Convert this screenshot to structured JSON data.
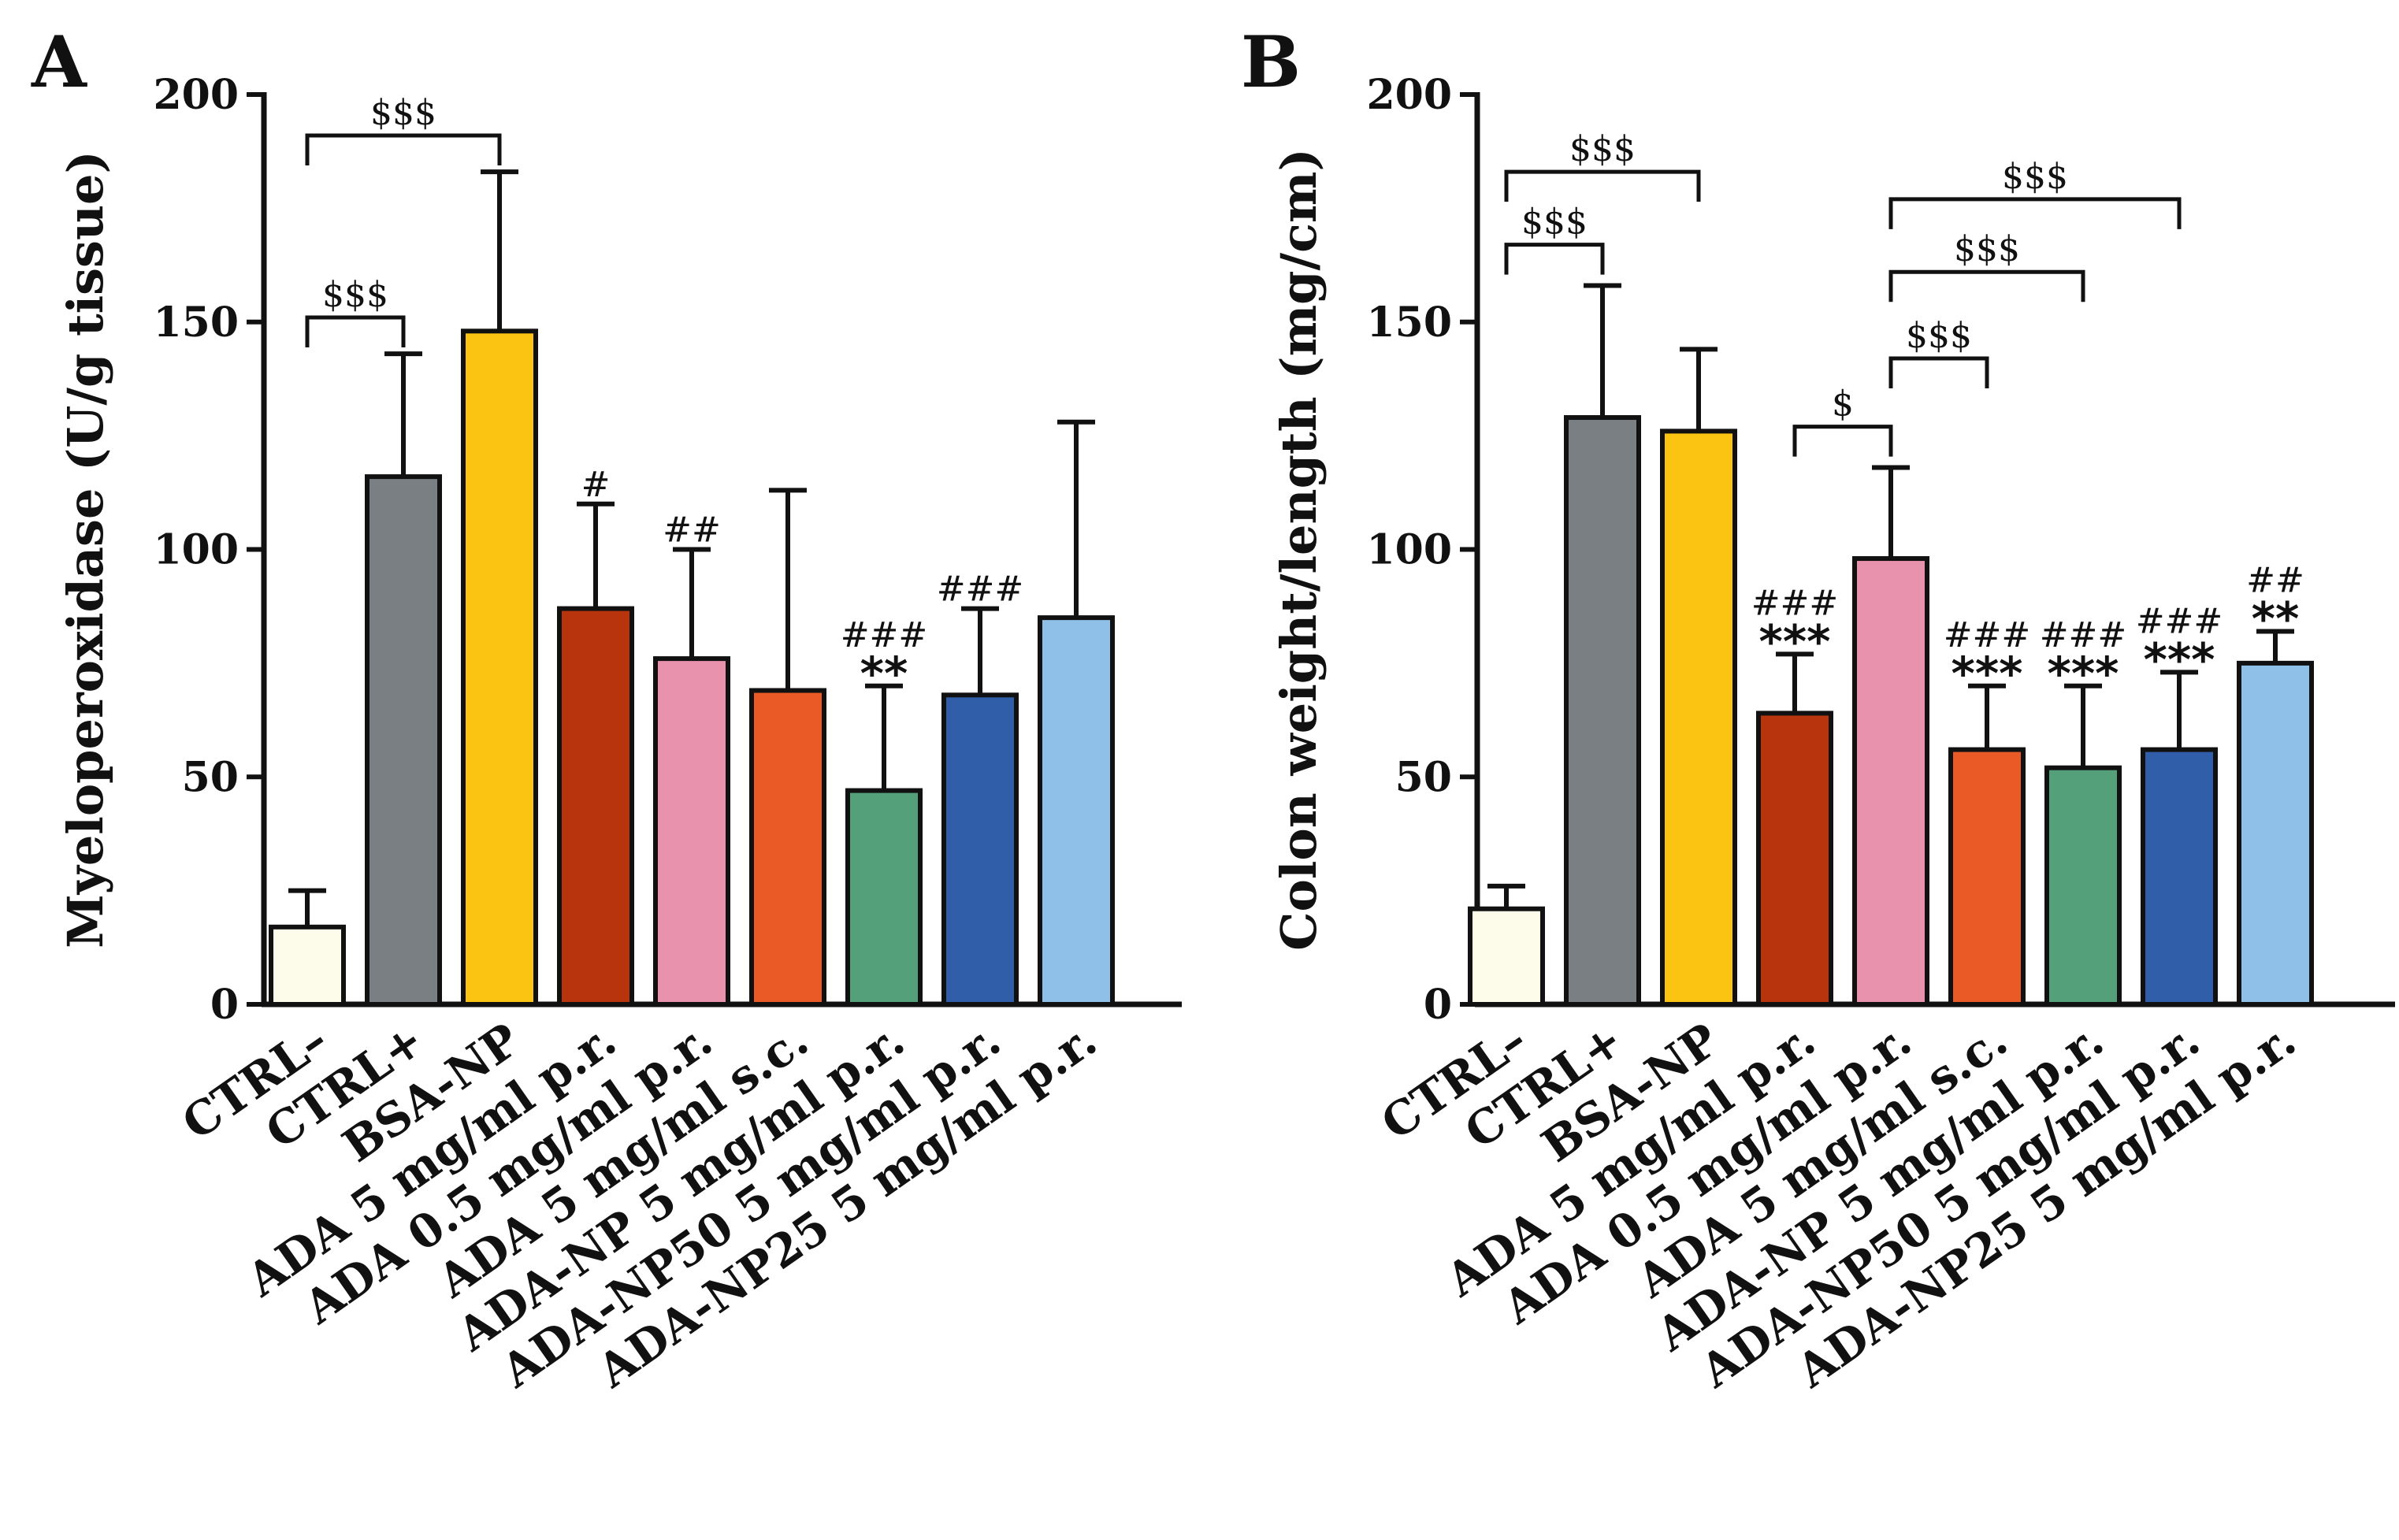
{
  "chart_data": [
    {
      "type": "bar",
      "panel": "A",
      "title": "",
      "xlabel": "",
      "ylabel": "Myeloperoxidase (U/g tissue)",
      "ylim": [
        0,
        200
      ],
      "yticks": [
        0,
        50,
        100,
        150,
        200
      ],
      "categories": [
        "CTRL–",
        "CTRL+",
        "BSA-NP",
        "ADA 5 mg/ml p.r.",
        "ADA 0.5 mg/ml p.r.",
        "ADA 5 mg/ml s.c.",
        "ADA-NP 5 mg/ml p.r.",
        "ADA-NP50 5 mg/ml p.r.",
        "ADA-NP25 5 mg/ml p.r."
      ],
      "values": [
        17,
        116,
        148,
        87,
        76,
        69,
        47,
        68,
        85
      ],
      "errors": [
        8,
        27,
        35,
        23,
        24,
        44,
        23,
        19,
        43
      ],
      "colors": [
        "#fdfbea",
        "#7a7f84",
        "#fcc412",
        "#b8340c",
        "#e892ad",
        "#e95a27",
        "#54a07b",
        "#315ea9",
        "#8ec0e8"
      ],
      "significance": [
        "",
        "",
        "",
        "#",
        "##",
        "",
        "###\n**",
        "###",
        ""
      ],
      "brackets": [
        {
          "from": 0,
          "to": 1,
          "label": "$$$",
          "y": 151
        },
        {
          "from": 0,
          "to": 2,
          "label": "$$$",
          "y": 191
        }
      ]
    },
    {
      "type": "bar",
      "panel": "B",
      "title": "",
      "xlabel": "",
      "ylabel": "Colon weight/length (mg/cm)",
      "ylim": [
        0,
        200
      ],
      "yticks": [
        0,
        50,
        100,
        150,
        200
      ],
      "categories": [
        "CTRL–",
        "CTRL+",
        "BSA-NP",
        "ADA 5 mg/ml p.r.",
        "ADA 0.5 mg/ml p.r.",
        "ADA 5 mg/ml s.c.",
        "ADA-NP 5 mg/ml p.r.",
        "ADA-NP50 5 mg/ml p.r.",
        "ADA-NP25 5 mg/ml p.r."
      ],
      "values": [
        21,
        129,
        126,
        64,
        98,
        56,
        52,
        56,
        75
      ],
      "errors": [
        5,
        29,
        18,
        13,
        20,
        14,
        18,
        17,
        7
      ],
      "colors": [
        "#fdfbea",
        "#7a7f84",
        "#fcc412",
        "#b8340c",
        "#e892ad",
        "#e95a27",
        "#54a07b",
        "#315ea9",
        "#8ec0e8"
      ],
      "significance": [
        "",
        "",
        "",
        "###\n***",
        "",
        "###\n***",
        "###\n***",
        "###\n***",
        "##\n**"
      ],
      "brackets": [
        {
          "from": 0,
          "to": 1,
          "label": "$$$",
          "y": 167
        },
        {
          "from": 0,
          "to": 2,
          "label": "$$$",
          "y": 183
        },
        {
          "from": 3,
          "to": 4,
          "label": "$",
          "y": 127
        },
        {
          "from": 4,
          "to": 5,
          "label": "$$$",
          "y": 142
        },
        {
          "from": 4,
          "to": 6,
          "label": "$$$",
          "y": 161
        },
        {
          "from": 4,
          "to": 7,
          "label": "$$$",
          "y": 177
        }
      ]
    }
  ]
}
